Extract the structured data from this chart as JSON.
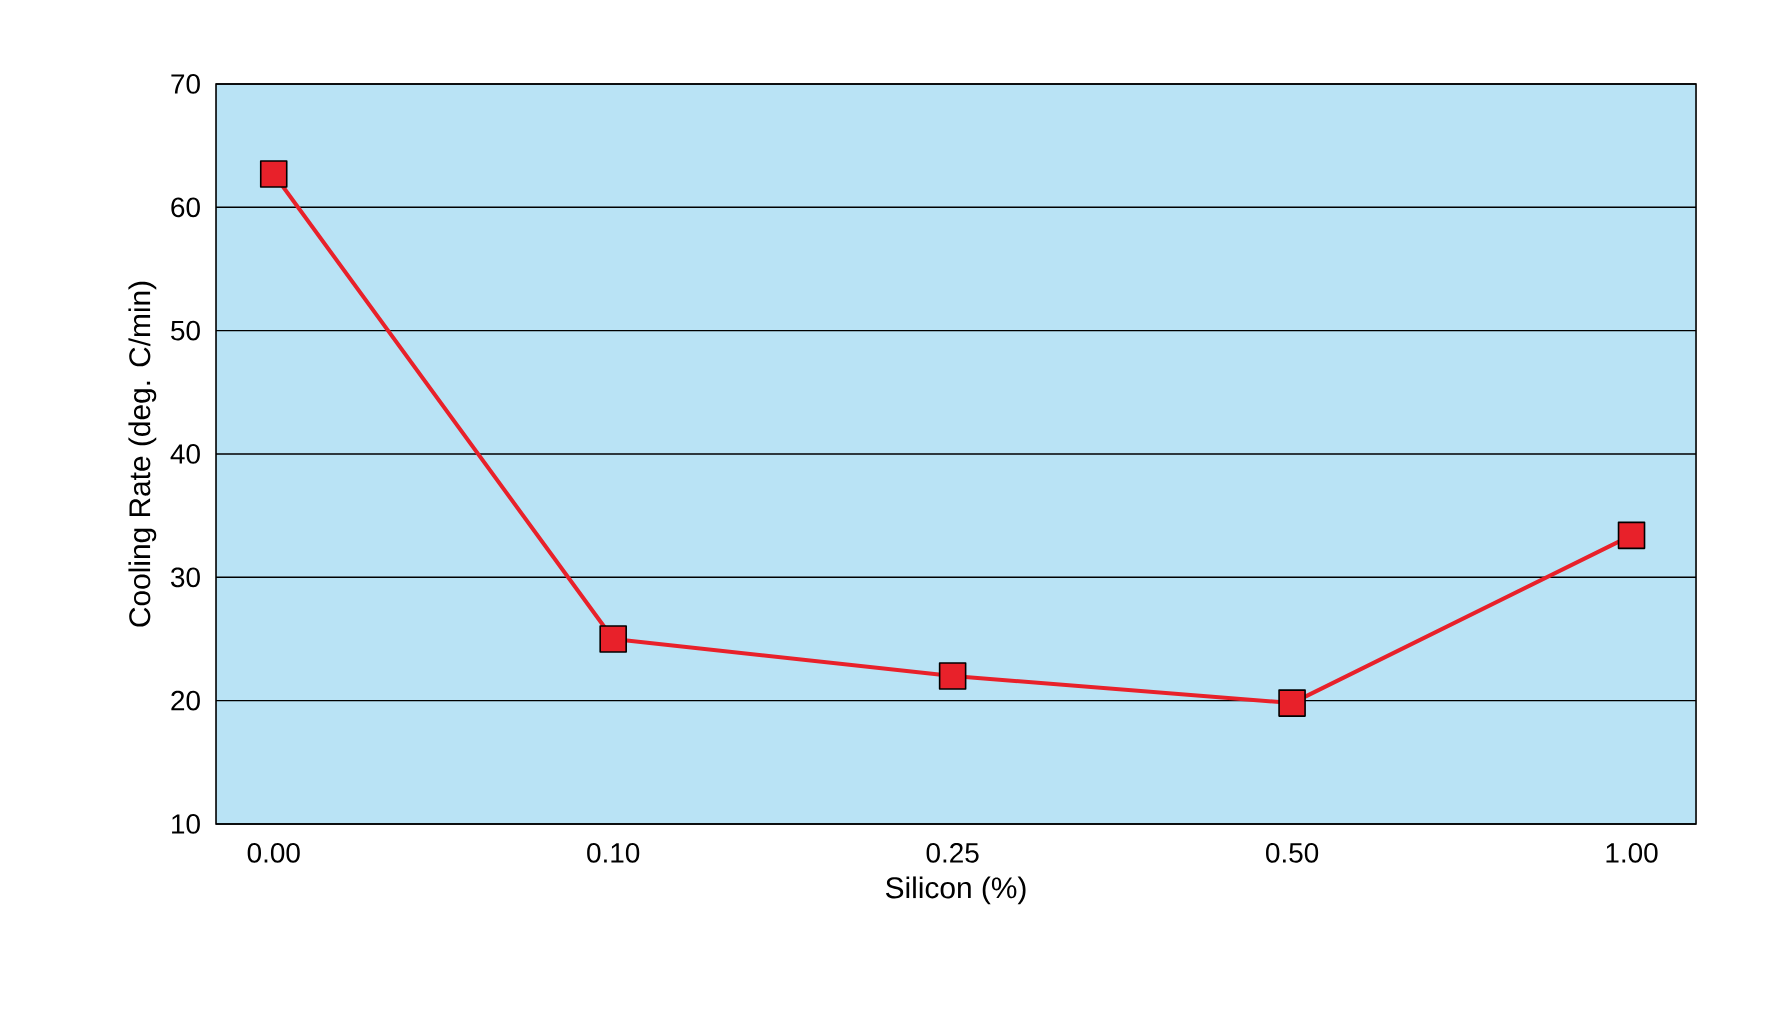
{
  "chart_data": {
    "type": "line",
    "xlabel": "Silicon (%)",
    "ylabel": "Cooling Rate (deg. C/min)",
    "categories": [
      "0.00",
      "0.10",
      "0.25",
      "0.50",
      "1.00"
    ],
    "series": [
      {
        "color": "#e8212a",
        "values": [
          62.7,
          25,
          22,
          19.8,
          33.4
        ]
      }
    ],
    "ylim": [
      10,
      70
    ],
    "yticks": [
      10,
      20,
      30,
      40,
      50,
      60,
      70
    ],
    "grid": "y",
    "marker": "square",
    "line_style": "solid"
  }
}
